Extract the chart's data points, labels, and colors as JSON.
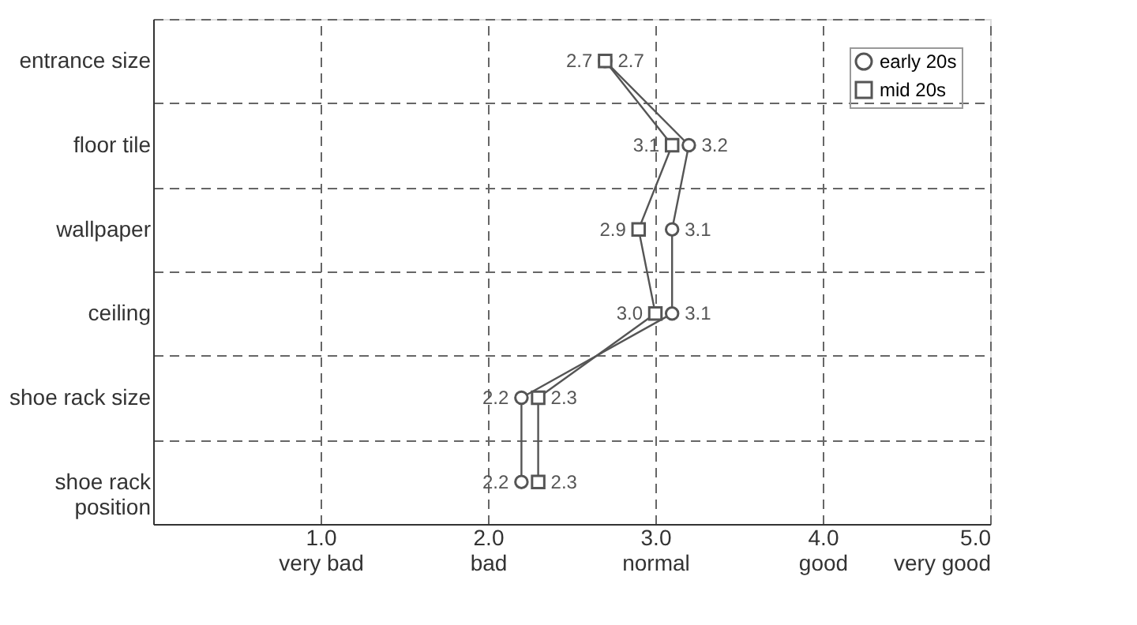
{
  "chart_data": {
    "type": "line",
    "orientation": "horizontal",
    "categories": [
      "entrance size",
      "floor tile",
      "wallpaper",
      "ceiling",
      "shoe rack size",
      "shoe rack\nposition"
    ],
    "series": [
      {
        "name": "early 20s",
        "color": "#555555",
        "marker": "circle",
        "values": [
          2.7,
          3.2,
          3.1,
          3.1,
          2.2,
          2.2
        ],
        "value_labels": [
          "2.7",
          "3.2",
          "3.1",
          "3.1",
          "2.2",
          "2.2"
        ]
      },
      {
        "name": "mid 20s",
        "color": "#555555",
        "marker": "square",
        "values": [
          2.7,
          3.1,
          2.9,
          3.0,
          2.3,
          2.3
        ],
        "value_labels": [
          "2.7",
          "3.1",
          "2.9",
          "3.0",
          "2.3",
          "2.3"
        ]
      }
    ],
    "xlim": [
      0,
      5
    ],
    "xticks": [
      {
        "value": 1,
        "label": "1.0\nvery bad"
      },
      {
        "value": 2,
        "label": "2.0\nbad"
      },
      {
        "value": 3,
        "label": "3.0\nnormal"
      },
      {
        "value": 4,
        "label": "4.0\ngood"
      },
      {
        "value": 5,
        "label": "5.0\nvery good"
      }
    ],
    "grid": true,
    "legend": "top right",
    "line_style": "solid"
  }
}
